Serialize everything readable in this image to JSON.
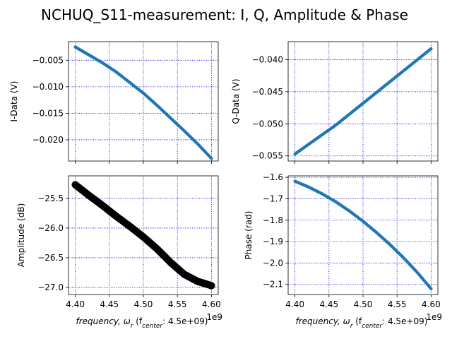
{
  "title": "NCHUQ_S11-measurement: I, Q, Amplitude & Phase",
  "chart_data": [
    {
      "type": "scatter",
      "name": "I-Data",
      "xlabel_prefix": "frequency, ω",
      "xlabel_sub": "r",
      "xlabel_mid": " (f",
      "xlabel_sub2": "center",
      "xlabel_suffix": ": 4.5e+09)",
      "ylabel": "I-Data (V)",
      "x_offset_label": "1e9",
      "xlim": [
        4.39,
        4.61
      ],
      "ylim": [
        -0.024,
        -0.0015
      ],
      "xticks": [
        4.4,
        4.45,
        4.5,
        4.55,
        4.6
      ],
      "xtick_labels": [
        "",
        "",
        "",
        "",
        ""
      ],
      "yticks": [
        -0.005,
        -0.01,
        -0.015,
        -0.02
      ],
      "ytick_labels": [
        "−0.005",
        "−0.010",
        "−0.015",
        "−0.020"
      ],
      "grid": true,
      "color": "#1f77b4",
      "x": [
        4.4,
        4.42,
        4.44,
        4.46,
        4.48,
        4.5,
        4.52,
        4.54,
        4.56,
        4.58,
        4.6
      ],
      "y": [
        -0.0025,
        -0.004,
        -0.0055,
        -0.0072,
        -0.0092,
        -0.0112,
        -0.0135,
        -0.0159,
        -0.0183,
        -0.0208,
        -0.0235
      ]
    },
    {
      "type": "scatter",
      "name": "Q-Data",
      "xlabel_prefix": "frequency, ω",
      "xlabel_sub": "r",
      "xlabel_mid": " (f",
      "xlabel_sub2": "center",
      "xlabel_suffix": ": 4.5e+09)",
      "ylabel": "Q-Data (V)",
      "x_offset_label": "1e9",
      "xlim": [
        4.39,
        4.61
      ],
      "ylim": [
        -0.0558,
        -0.0372
      ],
      "xticks": [
        4.4,
        4.45,
        4.5,
        4.55,
        4.6
      ],
      "xtick_labels": [
        "",
        "",
        "",
        "",
        ""
      ],
      "yticks": [
        -0.04,
        -0.045,
        -0.05,
        -0.055
      ],
      "ytick_labels": [
        "−0.040",
        "−0.045",
        "−0.050",
        "−0.055"
      ],
      "grid": true,
      "color": "#1f77b4",
      "x": [
        4.4,
        4.42,
        4.44,
        4.46,
        4.48,
        4.5,
        4.52,
        4.54,
        4.56,
        4.58,
        4.6
      ],
      "y": [
        -0.0547,
        -0.0532,
        -0.0517,
        -0.0502,
        -0.0485,
        -0.0468,
        -0.0451,
        -0.0434,
        -0.0417,
        -0.04,
        -0.0383
      ]
    },
    {
      "type": "scatter",
      "name": "Amplitude",
      "xlabel_prefix": "frequency, ω",
      "xlabel_sub": "r",
      "xlabel_mid": " (f",
      "xlabel_sub2": "center",
      "xlabel_suffix": ": 4.5e+09)",
      "ylabel": "Amplitude (dB)",
      "x_offset_label": "1e9",
      "xlim": [
        4.39,
        4.61
      ],
      "ylim": [
        -27.12,
        -25.12
      ],
      "xticks": [
        4.4,
        4.45,
        4.5,
        4.55,
        4.6
      ],
      "xtick_labels": [
        "4.40",
        "4.45",
        "4.50",
        "4.55",
        "4.60"
      ],
      "yticks": [
        -25.5,
        -26.0,
        -26.5,
        -27.0
      ],
      "ytick_labels": [
        "−25.5",
        "−26.0",
        "−26.5",
        "−27.0"
      ],
      "grid": true,
      "color": "#000000",
      "thick": true,
      "x": [
        4.4,
        4.42,
        4.44,
        4.46,
        4.48,
        4.5,
        4.52,
        4.54,
        4.56,
        4.58,
        4.6
      ],
      "y": [
        -25.27,
        -25.45,
        -25.62,
        -25.8,
        -25.97,
        -26.15,
        -26.35,
        -26.58,
        -26.78,
        -26.9,
        -26.97
      ]
    },
    {
      "type": "scatter",
      "name": "Phase",
      "xlabel_prefix": "frequency, ω",
      "xlabel_sub": "r",
      "xlabel_mid": " (f",
      "xlabel_sub2": "center",
      "xlabel_suffix": ": 4.5e+09)",
      "ylabel": "Phase (rad)",
      "x_offset_label": "1e9",
      "xlim": [
        4.39,
        4.61
      ],
      "ylim": [
        -2.147,
        -1.593
      ],
      "xticks": [
        4.4,
        4.45,
        4.5,
        4.55,
        4.6
      ],
      "xtick_labels": [
        "4.40",
        "4.45",
        "4.50",
        "4.55",
        "4.60"
      ],
      "yticks": [
        -1.6,
        -1.7,
        -1.8,
        -1.9,
        -2.0,
        -2.1
      ],
      "ytick_labels": [
        "−1.6",
        "−1.7",
        "−1.8",
        "−1.9",
        "−2.0",
        "−2.1"
      ],
      "grid": true,
      "color": "#1f77b4",
      "x": [
        4.4,
        4.42,
        4.44,
        4.46,
        4.48,
        4.5,
        4.52,
        4.54,
        4.56,
        4.58,
        4.6
      ],
      "y": [
        -1.618,
        -1.645,
        -1.677,
        -1.714,
        -1.757,
        -1.805,
        -1.858,
        -1.915,
        -1.977,
        -2.045,
        -2.12
      ]
    }
  ]
}
